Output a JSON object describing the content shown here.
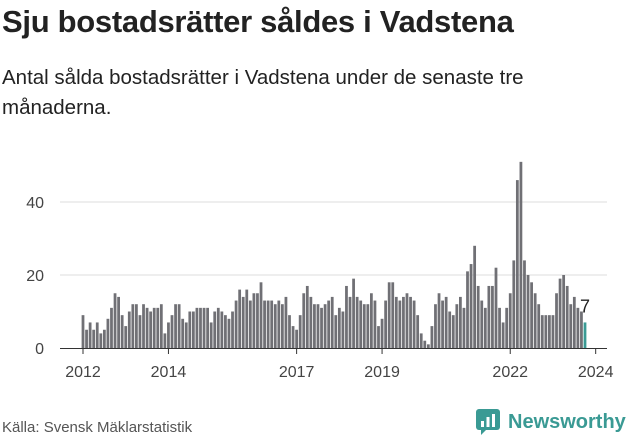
{
  "title": "Sju bostadsrätter såldes i Vadstena",
  "subtitle": "Antal sålda bostadsrätter i Vadstena under de senaste tre månaderna.",
  "source": "Källa: Svensk Mäklarstatistik",
  "brand": {
    "name": "Newsworthy",
    "color": "#3a9a94"
  },
  "chart_data": {
    "type": "bar",
    "title": "Sju bostadsrätter såldes i Vadstena",
    "xlabel": "",
    "ylabel": "",
    "ylim": [
      0,
      55
    ],
    "yticks": [
      0,
      20,
      40
    ],
    "xtick_labels": [
      "2012",
      "2014",
      "2017",
      "2019",
      "2022",
      "2024"
    ],
    "x_start": "2012-01",
    "frequency": "monthly",
    "bar_color": "#707075",
    "highlight_color": "#3a9a94",
    "last_value_label": "7",
    "values": [
      9,
      5,
      7,
      5,
      7,
      4,
      5,
      8,
      11,
      15,
      14,
      9,
      6,
      10,
      12,
      12,
      9,
      12,
      11,
      10,
      11,
      11,
      12,
      4,
      7,
      9,
      12,
      12,
      8,
      7,
      10,
      10,
      11,
      11,
      11,
      11,
      7,
      10,
      11,
      10,
      9,
      8,
      10,
      13,
      16,
      14,
      16,
      13,
      15,
      15,
      18,
      13,
      13,
      13,
      12,
      13,
      12,
      14,
      9,
      6,
      5,
      9,
      15,
      17,
      14,
      12,
      12,
      11,
      12,
      13,
      14,
      9,
      11,
      10,
      17,
      14,
      19,
      14,
      13,
      12,
      12,
      15,
      13,
      6,
      8,
      13,
      18,
      18,
      14,
      13,
      14,
      15,
      14,
      13,
      9,
      4,
      2,
      1,
      6,
      12,
      15,
      13,
      14,
      10,
      9,
      12,
      14,
      11,
      21,
      23,
      28,
      17,
      13,
      11,
      17,
      17,
      22,
      11,
      7,
      11,
      15,
      24,
      46,
      51,
      24,
      20,
      18,
      15,
      12,
      9,
      9,
      9,
      9,
      15,
      19,
      20,
      17,
      12,
      14,
      11,
      10,
      7
    ]
  }
}
